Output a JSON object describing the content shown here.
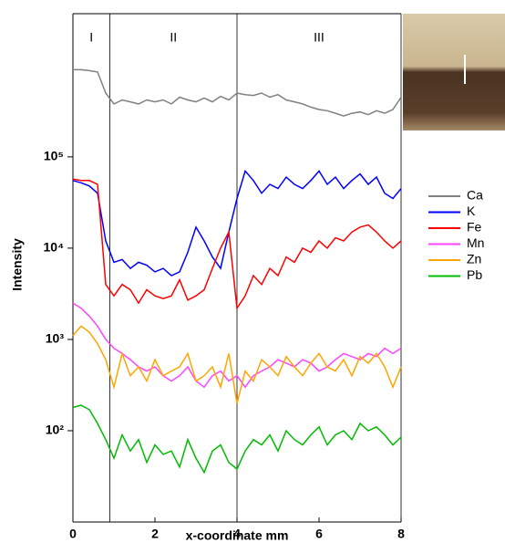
{
  "chart_data": {
    "type": "line",
    "x_label": "x-coordinate mm",
    "y_label": "Intensity",
    "y_log": true,
    "xlim": [
      0,
      8
    ],
    "xticks": [
      0,
      2,
      4,
      6,
      8
    ],
    "ylim": [
      10,
      3700000
    ],
    "yticks": [
      {
        "value": 100,
        "label": "10²"
      },
      {
        "value": 1000,
        "label": "10³"
      },
      {
        "value": 10000,
        "label": "10⁴"
      },
      {
        "value": 100000,
        "label": "10⁵"
      }
    ],
    "region_boundaries": [
      0.9,
      4,
      8
    ],
    "region_labels": [
      "I",
      "II",
      "III"
    ],
    "legend": "right",
    "x": [
      0,
      0.2,
      0.4,
      0.6,
      0.8,
      1,
      1.2,
      1.4,
      1.6,
      1.8,
      2,
      2.2,
      2.4,
      2.6,
      2.8,
      3,
      3.2,
      3.4,
      3.6,
      3.8,
      4,
      4.2,
      4.4,
      4.6,
      4.8,
      5,
      5.2,
      5.4,
      5.6,
      5.8,
      6,
      6.2,
      6.4,
      6.6,
      6.8,
      7,
      7.2,
      7.4,
      7.6,
      7.8,
      8
    ],
    "series": [
      {
        "name": "Ca",
        "color": "#808080",
        "values": [
          900000,
          900000,
          880000,
          850000,
          500000,
          380000,
          420000,
          400000,
          380000,
          420000,
          400000,
          420000,
          380000,
          450000,
          420000,
          400000,
          440000,
          400000,
          460000,
          420000,
          500000,
          480000,
          470000,
          500000,
          450000,
          480000,
          420000,
          400000,
          380000,
          350000,
          330000,
          320000,
          300000,
          280000,
          300000,
          310000,
          290000,
          320000,
          300000,
          330000,
          450000
        ]
      },
      {
        "name": "K",
        "color": "#0000ff",
        "values": [
          55000,
          52000,
          48000,
          40000,
          12000,
          7000,
          7500,
          6000,
          7000,
          6500,
          5500,
          6000,
          5000,
          5500,
          9000,
          17000,
          12000,
          8000,
          6000,
          15000,
          35000,
          70000,
          55000,
          40000,
          50000,
          45000,
          60000,
          50000,
          45000,
          55000,
          70000,
          50000,
          60000,
          45000,
          55000,
          65000,
          50000,
          60000,
          40000,
          35000,
          45000
        ]
      },
      {
        "name": "Fe",
        "color": "#ff0000",
        "values": [
          57000,
          55000,
          55000,
          50000,
          4000,
          3000,
          4000,
          3500,
          2500,
          3500,
          3000,
          2800,
          3000,
          4500,
          2700,
          3000,
          3500,
          6000,
          10000,
          15000,
          2200,
          3000,
          5000,
          4000,
          6000,
          5000,
          8000,
          7000,
          10000,
          9000,
          12000,
          10000,
          13000,
          12000,
          15000,
          17000,
          18000,
          15000,
          12000,
          10000,
          12000
        ]
      },
      {
        "name": "Mn",
        "color": "#ff44ff",
        "values": [
          2500,
          2200,
          1800,
          1400,
          1000,
          800,
          700,
          600,
          500,
          450,
          500,
          400,
          350,
          400,
          500,
          350,
          300,
          400,
          450,
          350,
          400,
          300,
          400,
          450,
          500,
          600,
          550,
          500,
          600,
          550,
          450,
          500,
          600,
          700,
          650,
          600,
          700,
          650,
          800,
          700,
          800
        ]
      },
      {
        "name": "Zn",
        "color": "#ffa500",
        "values": [
          1100,
          1400,
          1200,
          900,
          600,
          300,
          700,
          400,
          500,
          350,
          600,
          400,
          450,
          500,
          700,
          350,
          400,
          500,
          300,
          700,
          200,
          450,
          350,
          600,
          500,
          400,
          650,
          500,
          400,
          550,
          700,
          500,
          450,
          600,
          400,
          650,
          550,
          700,
          500,
          300,
          500
        ]
      },
      {
        "name": "Pb",
        "color": "#00bb00",
        "values": [
          180,
          190,
          170,
          120,
          80,
          50,
          90,
          60,
          80,
          45,
          70,
          55,
          60,
          40,
          80,
          50,
          35,
          60,
          70,
          45,
          38,
          60,
          80,
          70,
          90,
          60,
          100,
          80,
          70,
          90,
          110,
          70,
          90,
          100,
          80,
          120,
          100,
          110,
          90,
          70,
          85
        ]
      }
    ]
  }
}
